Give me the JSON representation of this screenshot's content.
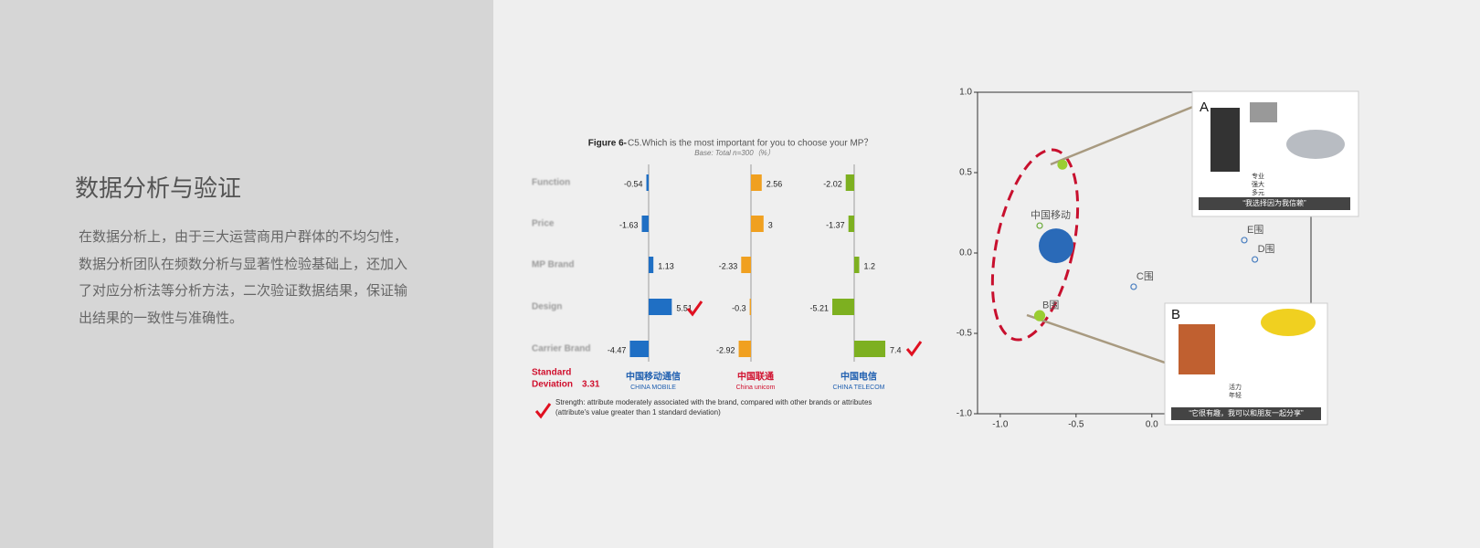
{
  "slide": {
    "title": "数据分析与验证",
    "body": "在数据分析上，由于三大运营商用户群体的不均匀性，数据分析团队在频数分析与显著性检验基础上，还加入了对应分析法等分析方法，二次验证数据结果，保证输出结果的一致性与准确性。"
  },
  "bar_figure": {
    "title_bold": "Figure 6-",
    "title": "C5.Which is the most important for you to choose your MP？",
    "subtitle": "Base: Total n=300（%）",
    "rows": [
      "Function",
      "Price",
      "MP Brand",
      "Design",
      "Carrier Brand"
    ],
    "columns": [
      {
        "name": "中国移动通信",
        "sub": "CHINA MOBILE",
        "color": "#1f6fc4",
        "values": [
          -0.54,
          -1.63,
          1.13,
          5.51,
          -4.47
        ]
      },
      {
        "name": "中国联通",
        "sub": "China unicom",
        "color": "#f0a020",
        "values": [
          2.56,
          3.0,
          -2.33,
          -0.3,
          -2.92
        ]
      },
      {
        "name": "中国电信",
        "sub": "CHINA TELECOM",
        "color": "#7db020",
        "values": [
          -2.02,
          -1.37,
          1.2,
          -5.21,
          7.4
        ]
      }
    ],
    "std_label_1": "Standard",
    "std_label_2": "Deviation",
    "std_value": 3.31,
    "note_1": "Strength: attribute moderately associated with the brand, compared with other brands or attributes",
    "note_2": "(attribute's value greater than 1 standard deviation)"
  },
  "scatter": {
    "xlim": [
      -1.15,
      1.05
    ],
    "ylim": [
      -1.0,
      1.0
    ],
    "xticks": [
      {
        "value": -1.0,
        "label": "-1.0"
      },
      {
        "value": -0.5,
        "label": "-0.5"
      },
      {
        "value": 0.0,
        "label": "0.0"
      }
    ],
    "yticks": [
      {
        "value": 1.0,
        "label": "1.0"
      },
      {
        "value": 0.5,
        "label": "0.5"
      },
      {
        "value": 0.0,
        "label": "0.0"
      },
      {
        "value": -0.5,
        "label": "-0.5"
      },
      {
        "value": -1.0,
        "label": "-1.0"
      }
    ],
    "points": [
      {
        "label": "中国移动",
        "x": -0.74,
        "y": 0.17,
        "color": "#6aaa3a"
      },
      {
        "label": "B围",
        "x": -0.74,
        "y": -0.39,
        "color": "#9acd32"
      },
      {
        "label": "C围",
        "x": -0.12,
        "y": -0.21,
        "color": "#4a7fc0"
      },
      {
        "label": "D围",
        "x": 0.68,
        "y": -0.04,
        "color": "#4a7fc0"
      },
      {
        "label": "E围",
        "x": 0.61,
        "y": 0.08,
        "color": "#4a7fc0"
      }
    ],
    "point_a": {
      "x": -0.59,
      "y": 0.55,
      "color": "#9acd32"
    },
    "card_a": {
      "letter": "A",
      "tags": [
        "专业",
        "强大",
        "多元"
      ],
      "quote": "“我选择因为我信赖”"
    },
    "card_b": {
      "letter": "B",
      "tags": [
        "活力",
        "年轻"
      ],
      "quote": "“它很有趣，我可以和朋友一起分享”"
    }
  }
}
